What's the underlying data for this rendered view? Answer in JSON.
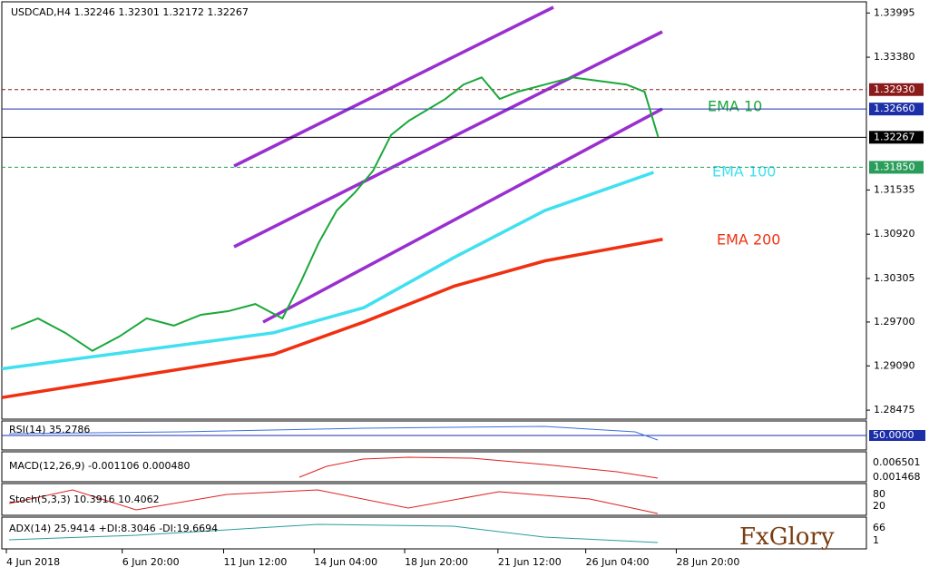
{
  "header": "USDCAD,H4  1.32246 1.32301 1.32172 1.32267",
  "chart_data": {
    "type": "line",
    "xlim": [
      0,
      955
    ],
    "xticks": [
      {
        "value": 5,
        "label": "4 Jun 2018"
      },
      {
        "value": 133,
        "label": "6 Jun 20:00"
      },
      {
        "value": 245,
        "label": "11 Jun 12:00"
      },
      {
        "value": 345,
        "label": "14 Jun 04:00"
      },
      {
        "value": 445,
        "label": "18 Jun 20:00"
      },
      {
        "value": 548,
        "label": "21 Jun 12:00"
      },
      {
        "value": 645,
        "label": "26 Jun 04:00"
      },
      {
        "value": 745,
        "label": "28 Jun 20:00"
      }
    ],
    "ylim": [
      1.2835,
      1.3415
    ],
    "yticks": [
      1.33995,
      {
        "value": 1.3338,
        "label": "1.33380"
      },
      1.31535,
      {
        "value": 1.3092,
        "label": "1.30920"
      },
      1.30305,
      {
        "value": 1.297,
        "label": "1.29700"
      },
      {
        "value": 1.2909,
        "label": "1.29090"
      },
      1.28475
    ],
    "series": [
      {
        "name": "EMA 10",
        "color": "#1aa83a",
        "x": [
          10,
          40,
          70,
          100,
          130,
          160,
          190,
          220,
          250,
          280,
          310,
          330,
          350,
          370,
          390,
          410,
          430,
          450,
          470,
          490,
          510,
          530,
          550,
          570,
          600,
          630,
          660,
          690,
          710,
          725
        ],
        "values": [
          1.296,
          1.2975,
          1.2955,
          1.293,
          1.295,
          1.2975,
          1.2965,
          1.298,
          1.2985,
          1.2995,
          1.2975,
          1.3025,
          1.308,
          1.3125,
          1.315,
          1.318,
          1.323,
          1.325,
          1.3265,
          1.328,
          1.33,
          1.331,
          1.328,
          1.329,
          1.33,
          1.331,
          1.3305,
          1.33,
          1.329,
          1.3227
        ]
      },
      {
        "name": "EMA 100",
        "color": "#40e0f0",
        "x": [
          0,
          150,
          300,
          400,
          500,
          600,
          720
        ],
        "values": [
          1.2905,
          1.293,
          1.2955,
          1.299,
          1.306,
          1.3125,
          1.3178
        ]
      },
      {
        "name": "EMA 200",
        "color": "#f03010",
        "x": [
          0,
          150,
          300,
          400,
          500,
          600,
          730
        ],
        "values": [
          1.2865,
          1.2895,
          1.2925,
          1.297,
          1.302,
          1.3055,
          1.3085
        ]
      }
    ],
    "price_levels": [
      {
        "value": 1.3293,
        "label": "1.32930",
        "color": "#8b1a1a"
      },
      {
        "value": 1.3266,
        "label": "1.32660",
        "color": "#1c2ea8"
      },
      {
        "value": 1.32267,
        "label": "1.32267",
        "color": "#000000"
      },
      {
        "value": 1.3185,
        "label": "1.31850",
        "color": "#2a9d5a"
      }
    ]
  },
  "panels": {
    "rsi": {
      "title": "RSI(14) 35.2786",
      "level": "50.0000"
    },
    "macd": {
      "title": "MACD(12,26,9) -0.001106 0.000480",
      "ticks": [
        "0.006501",
        "0.001468"
      ]
    },
    "stoch": {
      "title": "Stoch(5,3,3) 10.3916 10.4062",
      "ticks": [
        "80",
        "20"
      ]
    },
    "adx": {
      "title": "ADX(14) 25.9414 +DI:8.3046 -DI:19.6694",
      "ticks": [
        "66",
        "1"
      ]
    }
  },
  "logo": "FxGlory"
}
